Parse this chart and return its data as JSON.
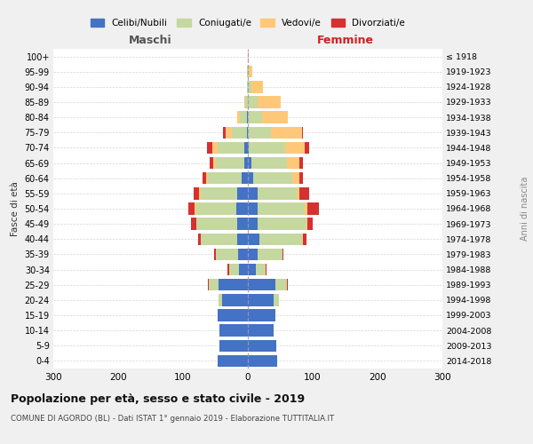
{
  "age_groups": [
    "0-4",
    "5-9",
    "10-14",
    "15-19",
    "20-24",
    "25-29",
    "30-34",
    "35-39",
    "40-44",
    "45-49",
    "50-54",
    "55-59",
    "60-64",
    "65-69",
    "70-74",
    "75-79",
    "80-84",
    "85-89",
    "90-94",
    "95-99",
    "100+"
  ],
  "birth_years": [
    "2014-2018",
    "2009-2013",
    "2004-2008",
    "1999-2003",
    "1994-1998",
    "1989-1993",
    "1984-1988",
    "1979-1983",
    "1974-1978",
    "1969-1973",
    "1964-1968",
    "1959-1963",
    "1954-1958",
    "1949-1953",
    "1944-1948",
    "1939-1943",
    "1934-1938",
    "1929-1933",
    "1924-1928",
    "1919-1923",
    "≤ 1918"
  ],
  "maschi": {
    "celibi": [
      46,
      44,
      44,
      47,
      40,
      45,
      14,
      15,
      17,
      17,
      18,
      17,
      10,
      5,
      5,
      2,
      2,
      0,
      0,
      0,
      0
    ],
    "coniugati": [
      0,
      0,
      0,
      0,
      5,
      15,
      15,
      35,
      55,
      62,
      62,
      55,
      52,
      45,
      42,
      22,
      10,
      4,
      2,
      1,
      0
    ],
    "vedovi": [
      0,
      0,
      0,
      0,
      0,
      0,
      0,
      0,
      0,
      0,
      2,
      3,
      3,
      4,
      8,
      10,
      5,
      2,
      0,
      0,
      0
    ],
    "divorziati": [
      0,
      0,
      0,
      0,
      0,
      2,
      2,
      2,
      5,
      8,
      10,
      8,
      5,
      5,
      8,
      5,
      0,
      0,
      0,
      0,
      0
    ]
  },
  "femmine": {
    "nubili": [
      45,
      44,
      40,
      42,
      40,
      42,
      12,
      15,
      18,
      15,
      15,
      15,
      8,
      5,
      2,
      0,
      0,
      0,
      0,
      0,
      0
    ],
    "coniugate": [
      0,
      0,
      0,
      0,
      8,
      18,
      15,
      38,
      65,
      75,
      72,
      60,
      60,
      55,
      55,
      35,
      22,
      15,
      5,
      2,
      0
    ],
    "vedove": [
      0,
      0,
      0,
      0,
      0,
      0,
      0,
      0,
      2,
      2,
      5,
      5,
      12,
      20,
      30,
      48,
      40,
      35,
      18,
      5,
      1
    ],
    "divorziate": [
      0,
      0,
      0,
      0,
      0,
      2,
      2,
      2,
      5,
      8,
      18,
      15,
      5,
      5,
      8,
      2,
      0,
      0,
      0,
      0,
      0
    ]
  },
  "colors": {
    "celibi": "#4472c4",
    "coniugati": "#c5d8a0",
    "vedovi": "#ffc878",
    "divorziati": "#d63030"
  },
  "xlim": 300,
  "title": "Popolazione per età, sesso e stato civile - 2019",
  "subtitle": "COMUNE DI AGORDO (BL) - Dati ISTAT 1° gennaio 2019 - Elaborazione TUTTITALIA.IT",
  "ylabel_left": "Fasce di età",
  "ylabel_right": "Anni di nascita",
  "xlabel_left": "Maschi",
  "xlabel_right": "Femmine",
  "legend_labels": [
    "Celibi/Nubili",
    "Coniugati/e",
    "Vedovi/e",
    "Divorziati/e"
  ],
  "bg_color": "#f0f0f0",
  "plot_bg": "#ffffff",
  "grid_color": "#cccccc",
  "dashed_center_color": "#9999bb",
  "maschi_label_color": "#555555",
  "femmine_label_color": "#cc2222",
  "title_color": "#111111",
  "subtitle_color": "#444444",
  "right_axis_color": "#888888"
}
